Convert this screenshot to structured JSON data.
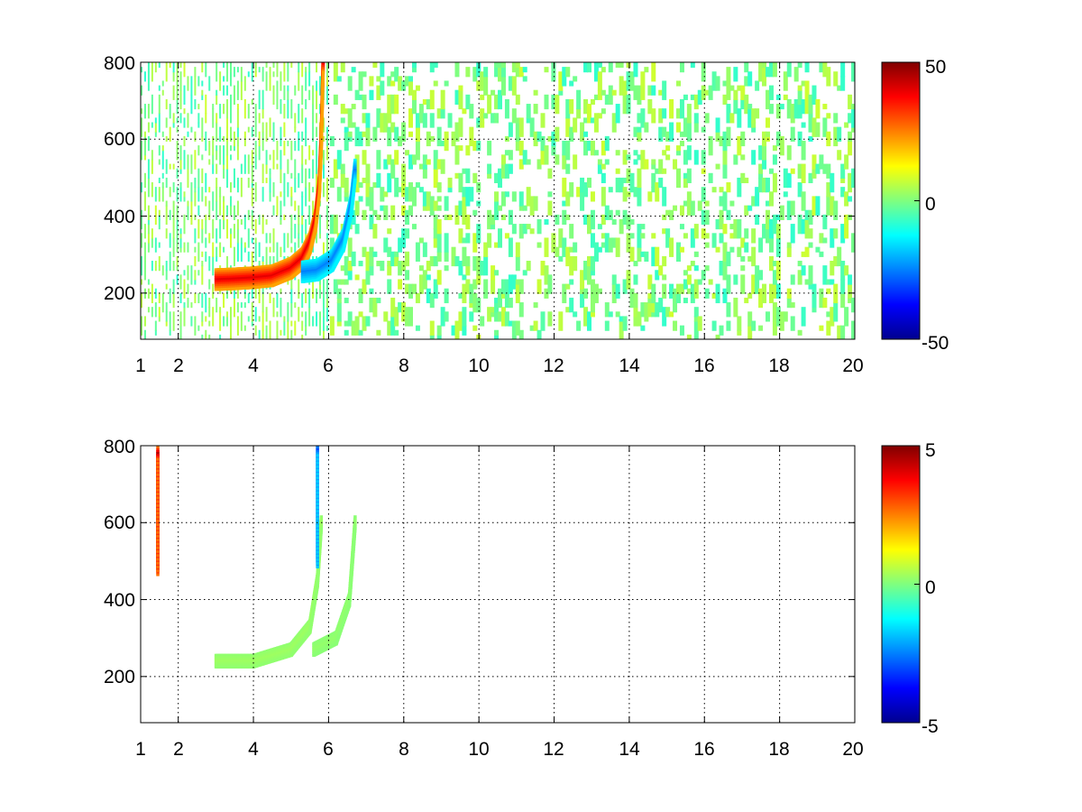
{
  "chart_data": [
    {
      "type": "heatmap",
      "xlim": [
        1,
        20
      ],
      "ylim": [
        80,
        800
      ],
      "x_ticks": [
        1,
        2,
        4,
        6,
        8,
        10,
        12,
        14,
        16,
        18,
        20
      ],
      "x_tick_labels": [
        "1",
        "2",
        "4",
        "6",
        "8",
        "10",
        "12",
        "14",
        "16",
        "18",
        "20"
      ],
      "y_ticks": [
        200,
        400,
        600,
        800
      ],
      "y_tick_labels": [
        "200",
        "400",
        "600",
        "800"
      ],
      "grid": true,
      "colormap": "jet",
      "clim": [
        -50,
        50
      ],
      "colorbar_ticks": [
        -50,
        0,
        50
      ],
      "colorbar_tick_labels": [
        "-50",
        "0",
        "50"
      ],
      "features": [
        {
          "description": "positive ridge",
          "points": [
            [
              3.0,
              235
            ],
            [
              3.5,
              237
            ],
            [
              4.0,
              240
            ],
            [
              4.5,
              245
            ],
            [
              5.0,
              265
            ],
            [
              5.3,
              290
            ],
            [
              5.5,
              330
            ],
            [
              5.65,
              390
            ],
            [
              5.75,
              480
            ],
            [
              5.8,
              600
            ],
            [
              5.85,
              800
            ]
          ],
          "value": 40
        },
        {
          "description": "negative ridge",
          "points": [
            [
              5.3,
              255
            ],
            [
              5.7,
              260
            ],
            [
              6.1,
              285
            ],
            [
              6.4,
              340
            ],
            [
              6.6,
              430
            ],
            [
              6.7,
              520
            ]
          ],
          "value": -25
        }
      ],
      "background_noise_range": [
        -8,
        8
      ]
    },
    {
      "type": "heatmap",
      "xlim": [
        1,
        20
      ],
      "ylim": [
        80,
        800
      ],
      "x_ticks": [
        1,
        2,
        4,
        6,
        8,
        10,
        12,
        14,
        16,
        18,
        20
      ],
      "x_tick_labels": [
        "1",
        "2",
        "4",
        "6",
        "8",
        "10",
        "12",
        "14",
        "16",
        "18",
        "20"
      ],
      "y_ticks": [
        200,
        400,
        600,
        800
      ],
      "y_tick_labels": [
        "200",
        "400",
        "600",
        "800"
      ],
      "grid": true,
      "colormap": "jet",
      "clim": [
        -5,
        5
      ],
      "colorbar_ticks": [
        -5,
        0,
        5
      ],
      "colorbar_tick_labels": [
        "-5",
        "0",
        "5"
      ],
      "features": [
        {
          "description": "near-zero band",
          "points": [
            [
              3.0,
              240
            ],
            [
              4.0,
              240
            ],
            [
              5.0,
              270
            ],
            [
              5.5,
              330
            ],
            [
              5.7,
              450
            ],
            [
              5.8,
              600
            ]
          ],
          "value": 0.3
        },
        {
          "description": "near-zero band",
          "points": [
            [
              5.6,
              270
            ],
            [
              6.2,
              300
            ],
            [
              6.55,
              400
            ],
            [
              6.7,
              600
            ]
          ],
          "value": 0.2
        },
        {
          "description": "outlier column",
          "points": [
            [
              1.45,
              480
            ],
            [
              1.45,
              780
            ]
          ],
          "value": 4.5
        },
        {
          "description": "outlier column",
          "points": [
            [
              5.7,
              500
            ],
            [
              5.7,
              790
            ]
          ],
          "value": -3
        }
      ]
    }
  ],
  "panels": [
    {
      "y_tick_labels": [
        "200",
        "400",
        "600",
        "800"
      ],
      "x_tick_labels": [
        "1",
        "2",
        "4",
        "6",
        "8",
        "10",
        "12",
        "14",
        "16",
        "18",
        "20"
      ],
      "colorbar_tick_labels": [
        "50",
        "0",
        "-50"
      ]
    },
    {
      "y_tick_labels": [
        "200",
        "400",
        "600",
        "800"
      ],
      "x_tick_labels": [
        "1",
        "2",
        "4",
        "6",
        "8",
        "10",
        "12",
        "14",
        "16",
        "18",
        "20"
      ],
      "colorbar_tick_labels": [
        "5",
        "0",
        "-5"
      ]
    }
  ]
}
